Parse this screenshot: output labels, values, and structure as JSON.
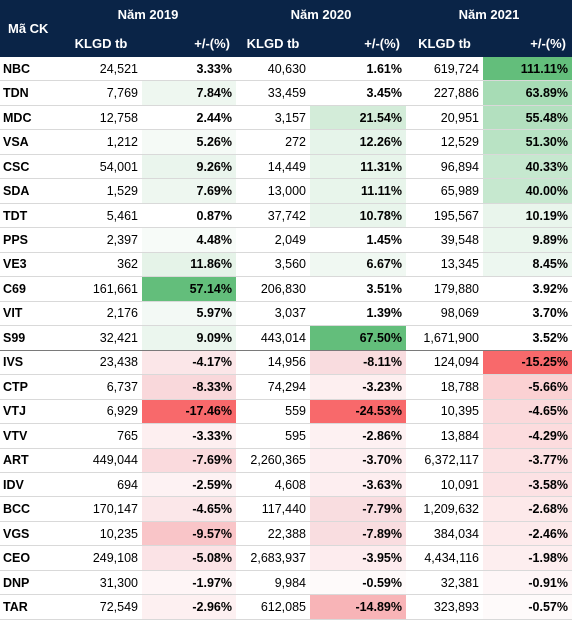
{
  "header": {
    "code_label": "Mã CK",
    "years": [
      "Năm 2019",
      "Năm 2020",
      "Năm 2021"
    ],
    "vol_label": "KLGD tb",
    "chg_label": "+/-(%)"
  },
  "rows": [
    {
      "code": "NBC",
      "y2019": {
        "vol": "24,521",
        "chg": "3.33%",
        "bg": "#ffffff"
      },
      "y2020": {
        "vol": "40,630",
        "chg": "1.61%",
        "bg": "#ffffff"
      },
      "y2021": {
        "vol": "619,724",
        "chg": "111.11%",
        "bg": "#63be7b"
      }
    },
    {
      "code": "TDN",
      "y2019": {
        "vol": "7,769",
        "chg": "7.84%",
        "bg": "#eef7f0"
      },
      "y2020": {
        "vol": "33,459",
        "chg": "3.45%",
        "bg": "#ffffff"
      },
      "y2021": {
        "vol": "227,886",
        "chg": "63.89%",
        "bg": "#a7dcb5"
      }
    },
    {
      "code": "MDC",
      "y2019": {
        "vol": "12,758",
        "chg": "2.44%",
        "bg": "#ffffff"
      },
      "y2020": {
        "vol": "3,157",
        "chg": "21.54%",
        "bg": "#d3ecd9"
      },
      "y2021": {
        "vol": "20,951",
        "chg": "55.48%",
        "bg": "#b3e0bf"
      }
    },
    {
      "code": "VSA",
      "y2019": {
        "vol": "1,212",
        "chg": "5.26%",
        "bg": "#f5faf6"
      },
      "y2020": {
        "vol": "272",
        "chg": "12.26%",
        "bg": "#e6f4ea"
      },
      "y2021": {
        "vol": "12,529",
        "chg": "51.30%",
        "bg": "#b9e3c4"
      }
    },
    {
      "code": "CSC",
      "y2019": {
        "vol": "54,001",
        "chg": "9.26%",
        "bg": "#eaf5ed"
      },
      "y2020": {
        "vol": "14,449",
        "chg": "11.31%",
        "bg": "#e8f5eb"
      },
      "y2021": {
        "vol": "96,894",
        "chg": "40.33%",
        "bg": "#c6e8cf"
      }
    },
    {
      "code": "SDA",
      "y2019": {
        "vol": "1,529",
        "chg": "7.69%",
        "bg": "#eef7f0"
      },
      "y2020": {
        "vol": "13,000",
        "chg": "11.11%",
        "bg": "#e8f5eb"
      },
      "y2021": {
        "vol": "65,989",
        "chg": "40.00%",
        "bg": "#c6e8cf"
      }
    },
    {
      "code": "TDT",
      "y2019": {
        "vol": "5,461",
        "chg": "0.87%",
        "bg": "#ffffff"
      },
      "y2020": {
        "vol": "37,742",
        "chg": "10.78%",
        "bg": "#e9f5ec"
      },
      "y2021": {
        "vol": "195,567",
        "chg": "10.19%",
        "bg": "#e9f5ec"
      }
    },
    {
      "code": "PPS",
      "y2019": {
        "vol": "2,397",
        "chg": "4.48%",
        "bg": "#f7fbf8"
      },
      "y2020": {
        "vol": "2,049",
        "chg": "1.45%",
        "bg": "#ffffff"
      },
      "y2021": {
        "vol": "39,548",
        "chg": "9.89%",
        "bg": "#eaf6ed"
      }
    },
    {
      "code": "VE3",
      "y2019": {
        "vol": "362",
        "chg": "11.86%",
        "bg": "#e5f3e8"
      },
      "y2020": {
        "vol": "3,560",
        "chg": "6.67%",
        "bg": "#f0f8f2"
      },
      "y2021": {
        "vol": "13,345",
        "chg": "8.45%",
        "bg": "#edf7f0"
      }
    },
    {
      "code": "C69",
      "y2019": {
        "vol": "161,661",
        "chg": "57.14%",
        "bg": "#63be7b"
      },
      "y2020": {
        "vol": "206,830",
        "chg": "3.51%",
        "bg": "#ffffff"
      },
      "y2021": {
        "vol": "179,880",
        "chg": "3.92%",
        "bg": "#ffffff"
      }
    },
    {
      "code": "VIT",
      "y2019": {
        "vol": "2,176",
        "chg": "5.97%",
        "bg": "#f3f9f5"
      },
      "y2020": {
        "vol": "3,037",
        "chg": "1.39%",
        "bg": "#ffffff"
      },
      "y2021": {
        "vol": "98,069",
        "chg": "3.70%",
        "bg": "#ffffff"
      }
    },
    {
      "code": "S99",
      "y2019": {
        "vol": "32,421",
        "chg": "9.09%",
        "bg": "#ebf6ee"
      },
      "y2020": {
        "vol": "443,014",
        "chg": "67.50%",
        "bg": "#63be7b"
      },
      "y2021": {
        "vol": "1,671,900",
        "chg": "3.52%",
        "bg": "#ffffff"
      }
    },
    {
      "code": "IVS",
      "y2019": {
        "vol": "23,438",
        "chg": "-4.17%",
        "bg": "#fbe6e8"
      },
      "y2020": {
        "vol": "14,956",
        "chg": "-8.11%",
        "bg": "#f9dcdf"
      },
      "y2021": {
        "vol": "124,094",
        "chg": "-15.25%",
        "bg": "#f8696b"
      }
    },
    {
      "code": "CTP",
      "y2019": {
        "vol": "6,737",
        "chg": "-8.33%",
        "bg": "#f9d8db"
      },
      "y2020": {
        "vol": "74,294",
        "chg": "-3.23%",
        "bg": "#fdeff0"
      },
      "y2021": {
        "vol": "18,788",
        "chg": "-5.66%",
        "bg": "#fbd1d3"
      }
    },
    {
      "code": "VTJ",
      "y2019": {
        "vol": "6,929",
        "chg": "-17.46%",
        "bg": "#f8696b"
      },
      "y2020": {
        "vol": "559",
        "chg": "-24.53%",
        "bg": "#f8696b"
      },
      "y2021": {
        "vol": "10,395",
        "chg": "-4.65%",
        "bg": "#fbd9db"
      }
    },
    {
      "code": "VTV",
      "y2019": {
        "vol": "765",
        "chg": "-3.33%",
        "bg": "#fdeff0"
      },
      "y2020": {
        "vol": "595",
        "chg": "-2.86%",
        "bg": "#fdf1f2"
      },
      "y2021": {
        "vol": "13,884",
        "chg": "-4.29%",
        "bg": "#fcdcde"
      }
    },
    {
      "code": "ART",
      "y2019": {
        "vol": "449,044",
        "chg": "-7.69%",
        "bg": "#fadadd"
      },
      "y2020": {
        "vol": "2,260,365",
        "chg": "-3.70%",
        "bg": "#fdeef0"
      },
      "y2021": {
        "vol": "6,372,117",
        "chg": "-3.77%",
        "bg": "#fce1e3"
      }
    },
    {
      "code": "IDV",
      "y2019": {
        "vol": "694",
        "chg": "-2.59%",
        "bg": "#fdf2f3"
      },
      "y2020": {
        "vol": "4,608",
        "chg": "-3.63%",
        "bg": "#fdeef0"
      },
      "y2021": {
        "vol": "10,091",
        "chg": "-3.58%",
        "bg": "#fce2e4"
      }
    },
    {
      "code": "BCC",
      "y2019": {
        "vol": "170,147",
        "chg": "-4.65%",
        "bg": "#fbe7e9"
      },
      "y2020": {
        "vol": "117,440",
        "chg": "-7.79%",
        "bg": "#f9dde0"
      },
      "y2021": {
        "vol": "1,209,632",
        "chg": "-2.68%",
        "bg": "#fde9ea"
      }
    },
    {
      "code": "VGS",
      "y2019": {
        "vol": "10,235",
        "chg": "-9.57%",
        "bg": "#f9c5c8"
      },
      "y2020": {
        "vol": "22,388",
        "chg": "-7.89%",
        "bg": "#f9dde0"
      },
      "y2021": {
        "vol": "384,034",
        "chg": "-2.46%",
        "bg": "#fdeaeb"
      }
    },
    {
      "code": "CEO",
      "y2019": {
        "vol": "249,108",
        "chg": "-5.08%",
        "bg": "#fbe3e6"
      },
      "y2020": {
        "vol": "2,683,937",
        "chg": "-3.95%",
        "bg": "#fdecee"
      },
      "y2021": {
        "vol": "4,434,116",
        "chg": "-1.98%",
        "bg": "#fdeeef"
      }
    },
    {
      "code": "DNP",
      "y2019": {
        "vol": "31,300",
        "chg": "-1.97%",
        "bg": "#fef5f6"
      },
      "y2020": {
        "vol": "9,984",
        "chg": "-0.59%",
        "bg": "#fefafa"
      },
      "y2021": {
        "vol": "32,381",
        "chg": "-0.91%",
        "bg": "#fef6f7"
      }
    },
    {
      "code": "TAR",
      "y2019": {
        "vol": "72,549",
        "chg": "-2.96%",
        "bg": "#fdf0f1"
      },
      "y2020": {
        "vol": "612,085",
        "chg": "-14.89%",
        "bg": "#f8b4b7"
      },
      "y2021": {
        "vol": "323,893",
        "chg": "-0.57%",
        "bg": "#fefafa"
      }
    }
  ]
}
